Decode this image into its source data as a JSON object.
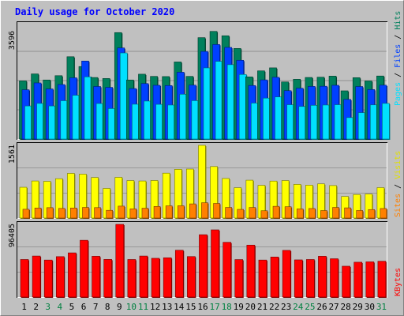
{
  "chart_data": [
    {
      "type": "bar",
      "title": "Daily usage for October 2020",
      "categories": [
        "1",
        "2",
        "3",
        "4",
        "5",
        "6",
        "7",
        "8",
        "9",
        "10",
        "11",
        "12",
        "13",
        "14",
        "15",
        "16",
        "17",
        "18",
        "19",
        "20",
        "21",
        "22",
        "23",
        "24",
        "25",
        "26",
        "27",
        "28",
        "29",
        "30",
        "31"
      ],
      "weekend_categories": [
        "3",
        "4",
        "10",
        "11",
        "17",
        "18",
        "24",
        "25",
        "31"
      ],
      "ylabel": "Pages / Files / Hits",
      "ymax_label": "3596",
      "ylim": [
        0,
        3596
      ],
      "series": [
        {
          "name": "Hits",
          "color": "#00805C",
          "values": [
            1839,
            2059,
            1867,
            2003,
            2602,
            2292,
            1945,
            1914,
            3365,
            1867,
            2050,
            1980,
            1975,
            2437,
            1980,
            3205,
            3403,
            3265,
            2864,
            1965,
            2155,
            2250,
            1805,
            1889,
            1947,
            1955,
            1989,
            1524,
            1940,
            1836,
            1993
          ]
        },
        {
          "name": "Files",
          "color": "#0040FF",
          "values": [
            1558,
            1774,
            1584,
            1723,
            1936,
            2466,
            1661,
            1633,
            2880,
            1596,
            1754,
            1699,
            1691,
            2112,
            1704,
            2770,
            2988,
            2897,
            2490,
            1692,
            1870,
            1952,
            1529,
            1606,
            1663,
            1669,
            1699,
            1253,
            1660,
            1564,
            1703
          ]
        },
        {
          "name": "Pages",
          "color": "#00E0FF",
          "values": [
            1046,
            1127,
            1046,
            1211,
            1384,
            1966,
            1123,
            963,
            2722,
            1101,
            1200,
            1097,
            1075,
            1416,
            1213,
            2249,
            2455,
            2351,
            2041,
            1137,
            1293,
            1331,
            1085,
            1030,
            1066,
            1075,
            1085,
            678,
            833,
            1080,
            1127
          ]
        }
      ]
    },
    {
      "type": "bar",
      "ylabel": "Sites / Visits",
      "ymax_label": "1561",
      "ylim": [
        0,
        1561
      ],
      "series": [
        {
          "name": "Visits",
          "color": "#FFFF00",
          "values": [
            661,
            796,
            788,
            845,
            959,
            943,
            870,
            636,
            874,
            805,
            796,
            806,
            964,
            1046,
            1052,
            1561,
            1106,
            850,
            652,
            813,
            703,
            794,
            805,
            723,
            706,
            734,
            698,
            463,
            505,
            515,
            653
          ]
        },
        {
          "name": "Sites",
          "color": "#FF8000",
          "values": [
            189,
            216,
            223,
            207,
            216,
            228,
            224,
            166,
            256,
            197,
            211,
            249,
            262,
            264,
            304,
            329,
            314,
            228,
            186,
            227,
            157,
            252,
            243,
            196,
            205,
            161,
            228,
            219,
            162,
            182,
            205
          ]
        }
      ]
    },
    {
      "type": "bar",
      "ylabel": "KBytes",
      "ymax_label": "96405",
      "ylim": [
        0,
        96405
      ],
      "series": [
        {
          "name": "KBytes",
          "color": "#FF0000",
          "values": [
            49800,
            54400,
            49100,
            53600,
            58600,
            75300,
            54100,
            49900,
            96405,
            49800,
            54400,
            51400,
            52100,
            62100,
            53700,
            82700,
            89100,
            72600,
            49700,
            68900,
            49100,
            53100,
            61900,
            49300,
            49800,
            54100,
            50800,
            40900,
            46200,
            46700,
            47500
          ]
        }
      ]
    }
  ]
}
